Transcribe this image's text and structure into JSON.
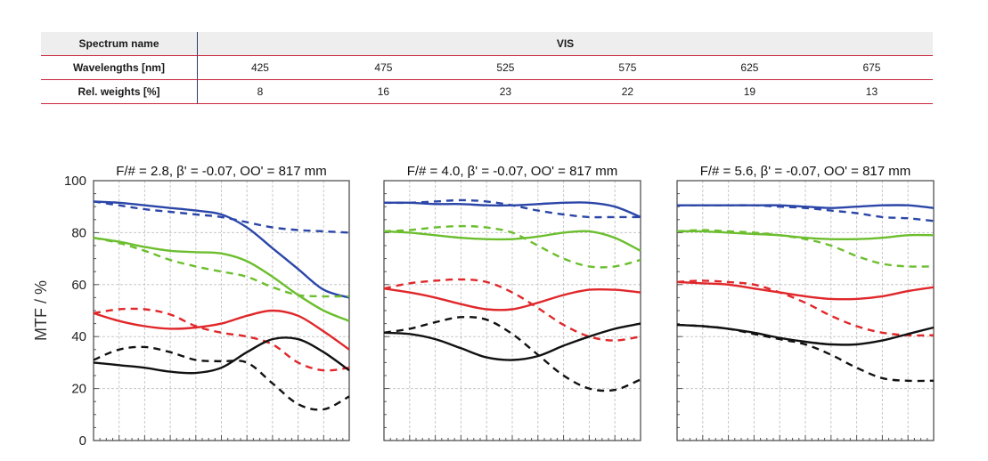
{
  "table": {
    "spectrum_label": "Spectrum name",
    "spectrum_value": "VIS",
    "wavelengths_label": "Wavelengths [nm]",
    "wavelengths": [
      "425",
      "475",
      "525",
      "575",
      "625",
      "675"
    ],
    "weights_label": "Rel. weights [%]",
    "weights": [
      "8",
      "16",
      "23",
      "22",
      "19",
      "13"
    ]
  },
  "colors": {
    "blue": "#2b46a8",
    "green": "#6cbe2e",
    "red": "#e0272a",
    "black": "#111111",
    "grid": "#c8c8c8",
    "table_rule": "#c6243a"
  },
  "chart_data": [
    {
      "type": "line",
      "title": "F/# = 2.8, β' = -0.07, OO' = 817 mm",
      "ylabel": "MTF / %",
      "ylim": [
        0,
        100
      ],
      "yticks": [
        "0",
        "20",
        "40",
        "60",
        "80",
        "100"
      ],
      "x": [
        0,
        0.1,
        0.2,
        0.3,
        0.4,
        0.5,
        0.6,
        0.7,
        0.8,
        0.9,
        1.0
      ],
      "xlim": [
        0,
        1
      ],
      "grid": true,
      "series": [
        {
          "color": "blue",
          "dash": false,
          "values": [
            92,
            91.5,
            90.5,
            89.5,
            88.5,
            87,
            82,
            74,
            66,
            58,
            55
          ]
        },
        {
          "color": "blue",
          "dash": true,
          "values": [
            92,
            90.5,
            89,
            88,
            87,
            86,
            84,
            82,
            81,
            80.5,
            80
          ]
        },
        {
          "color": "green",
          "dash": false,
          "values": [
            78,
            76.5,
            74.5,
            73,
            72.5,
            72,
            69,
            63,
            56,
            50,
            46
          ]
        },
        {
          "color": "green",
          "dash": true,
          "values": [
            78,
            76,
            73,
            69.5,
            67,
            65,
            63,
            59,
            56,
            55.5,
            55.5
          ]
        },
        {
          "color": "red",
          "dash": false,
          "values": [
            49,
            46,
            44,
            43,
            43.5,
            45,
            48,
            50,
            48,
            42,
            35
          ]
        },
        {
          "color": "red",
          "dash": true,
          "values": [
            49,
            50.5,
            50.5,
            48.5,
            44,
            41.5,
            40,
            37,
            30,
            27,
            28
          ]
        },
        {
          "color": "black",
          "dash": false,
          "values": [
            30,
            29,
            28,
            26.5,
            26,
            28,
            34,
            39,
            39,
            34,
            27
          ]
        },
        {
          "color": "black",
          "dash": true,
          "values": [
            31,
            35,
            36,
            34,
            31,
            30.5,
            30,
            22,
            14,
            12,
            17
          ]
        }
      ]
    },
    {
      "type": "line",
      "title": "F/# = 4.0, β' = -0.07, OO' = 817 mm",
      "ylim": [
        0,
        100
      ],
      "x": [
        0,
        0.1,
        0.2,
        0.3,
        0.4,
        0.5,
        0.6,
        0.7,
        0.8,
        0.9,
        1.0
      ],
      "xlim": [
        0,
        1
      ],
      "grid": true,
      "series": [
        {
          "color": "blue",
          "dash": false,
          "values": [
            91.5,
            91.5,
            91,
            91,
            90.5,
            90.5,
            91,
            91.5,
            91.5,
            90,
            86
          ]
        },
        {
          "color": "blue",
          "dash": true,
          "values": [
            91.5,
            91.5,
            92,
            92.5,
            92,
            90.5,
            88.5,
            87,
            86,
            86,
            86
          ]
        },
        {
          "color": "green",
          "dash": false,
          "values": [
            80.5,
            80,
            79,
            78,
            77.5,
            77.5,
            78.5,
            80,
            80.5,
            78,
            73
          ]
        },
        {
          "color": "green",
          "dash": true,
          "values": [
            80.5,
            81,
            82,
            82.5,
            82,
            80,
            75,
            70,
            67,
            67,
            69.5
          ]
        },
        {
          "color": "red",
          "dash": false,
          "values": [
            58.5,
            57,
            55,
            52.5,
            50.5,
            50.5,
            53,
            56,
            58,
            58,
            57
          ]
        },
        {
          "color": "red",
          "dash": true,
          "values": [
            58.5,
            60.5,
            61.5,
            62,
            61,
            57,
            51,
            44.5,
            40,
            38.5,
            40
          ]
        },
        {
          "color": "black",
          "dash": false,
          "values": [
            41.5,
            41,
            39,
            35.5,
            32,
            31,
            32.5,
            36.5,
            40,
            43,
            45
          ]
        },
        {
          "color": "black",
          "dash": true,
          "values": [
            41.5,
            43,
            45.5,
            47.5,
            46.5,
            41,
            33,
            25,
            20,
            19.5,
            23.5
          ]
        }
      ]
    },
    {
      "type": "line",
      "title": "F/# = 5.6, β' = -0.07, OO' = 817 mm",
      "ylim": [
        0,
        100
      ],
      "x": [
        0,
        0.1,
        0.2,
        0.3,
        0.4,
        0.5,
        0.6,
        0.7,
        0.8,
        0.9,
        1.0
      ],
      "xlim": [
        0,
        1
      ],
      "grid": true,
      "series": [
        {
          "color": "blue",
          "dash": false,
          "values": [
            90.5,
            90.5,
            90.5,
            90.5,
            90.5,
            90,
            89.5,
            90,
            90.5,
            90.5,
            89.5
          ]
        },
        {
          "color": "blue",
          "dash": true,
          "values": [
            90.5,
            90.5,
            90.5,
            90.5,
            90,
            89.5,
            88.5,
            87.5,
            86,
            85.5,
            84.5
          ]
        },
        {
          "color": "green",
          "dash": false,
          "values": [
            80.5,
            80.5,
            80,
            79.5,
            79,
            78,
            77.5,
            77.5,
            78,
            79,
            79
          ]
        },
        {
          "color": "green",
          "dash": true,
          "values": [
            80.5,
            81,
            80.5,
            80,
            79,
            77.5,
            75,
            71,
            68,
            67,
            67
          ]
        },
        {
          "color": "red",
          "dash": false,
          "values": [
            61,
            60.5,
            60,
            58.5,
            57,
            55.5,
            54.5,
            54.5,
            55.5,
            57.5,
            59
          ]
        },
        {
          "color": "red",
          "dash": true,
          "values": [
            61,
            61.5,
            61,
            60,
            57,
            53,
            48,
            44,
            41.5,
            40.5,
            40.5
          ]
        },
        {
          "color": "black",
          "dash": false,
          "values": [
            44.5,
            44,
            43,
            41.5,
            39.5,
            38,
            37,
            37,
            38.5,
            41,
            43.5
          ]
        },
        {
          "color": "black",
          "dash": true,
          "values": [
            44.5,
            44,
            43,
            41,
            39,
            37,
            33,
            28,
            24,
            23,
            23
          ]
        }
      ]
    }
  ]
}
